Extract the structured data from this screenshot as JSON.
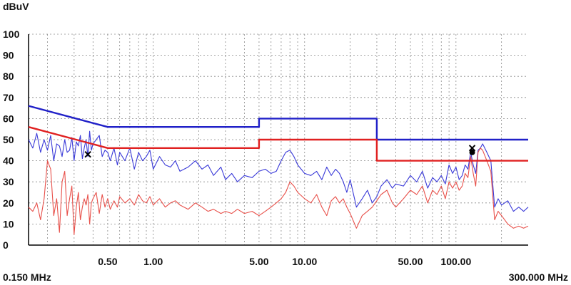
{
  "chart_data": {
    "type": "line",
    "title": "",
    "ylabel": "dBuV",
    "xlabel": "",
    "x_scale": "log",
    "xlim": [
      0.15,
      300
    ],
    "ylim": [
      0,
      100
    ],
    "x_start_label": "0.150 MHz",
    "x_end_label": "300.000 MHz",
    "y_ticks": [
      0,
      10,
      20,
      30,
      40,
      50,
      60,
      70,
      80,
      90,
      100
    ],
    "y_tick_labels": [
      "0",
      "10",
      "20",
      "30",
      "40",
      "50",
      "60",
      "70",
      "80",
      "90",
      "100"
    ],
    "x_ticks": [
      0.5,
      1,
      5,
      10,
      50,
      100
    ],
    "x_tick_labels": [
      "0.50",
      "1.00",
      "5.00",
      "10.00",
      "50.00",
      "100.00"
    ],
    "grid": true,
    "colors": {
      "blue": "#2020c8",
      "red": "#e02020",
      "blue_trace": "#3a3ad8",
      "red_trace": "#e8504a",
      "grid": "#888888",
      "marker": "#000000"
    },
    "series": [
      {
        "kind": "limit",
        "color": "blue",
        "x": [
          0.15,
          0.5,
          5,
          5,
          30,
          30,
          300
        ],
        "y": [
          66,
          56,
          56,
          60,
          60,
          50,
          50
        ]
      },
      {
        "kind": "limit",
        "color": "red",
        "x": [
          0.15,
          0.5,
          5,
          5,
          30,
          30,
          300
        ],
        "y": [
          56,
          46,
          46,
          50,
          50,
          40,
          40
        ]
      },
      {
        "kind": "trace",
        "color": "blue_trace",
        "x": [
          0.15,
          0.16,
          0.17,
          0.18,
          0.19,
          0.2,
          0.21,
          0.22,
          0.23,
          0.24,
          0.25,
          0.26,
          0.27,
          0.28,
          0.29,
          0.3,
          0.31,
          0.32,
          0.33,
          0.34,
          0.35,
          0.36,
          0.37,
          0.38,
          0.39,
          0.4,
          0.42,
          0.44,
          0.46,
          0.48,
          0.5,
          0.52,
          0.55,
          0.58,
          0.6,
          0.65,
          0.7,
          0.75,
          0.8,
          0.85,
          0.9,
          0.95,
          1.0,
          1.1,
          1.2,
          1.3,
          1.4,
          1.5,
          1.7,
          1.9,
          2.1,
          2.3,
          2.5,
          2.8,
          3.0,
          3.3,
          3.6,
          4.0,
          4.5,
          5.0,
          5.5,
          6.0,
          6.5,
          7.0,
          7.5,
          8.0,
          8.5,
          9.0,
          10,
          11,
          12,
          13,
          14,
          15,
          16,
          17,
          18,
          19,
          20,
          22,
          24,
          26,
          28,
          30,
          32,
          35,
          38,
          40,
          45,
          50,
          55,
          60,
          65,
          70,
          75,
          80,
          85,
          90,
          95,
          100,
          105,
          110,
          115,
          120,
          125,
          130,
          135,
          140,
          145,
          150,
          160,
          170,
          180,
          190,
          200,
          220,
          240,
          260,
          280,
          300
        ],
        "y": [
          50,
          46,
          53,
          44,
          50,
          45,
          52,
          40,
          48,
          47,
          42,
          50,
          44,
          45,
          51,
          40,
          49,
          47,
          52,
          41,
          46,
          50,
          42,
          54,
          45,
          48,
          50,
          52,
          42,
          45,
          44,
          40,
          46,
          38,
          44,
          40,
          46,
          36,
          44,
          40,
          42,
          45,
          36,
          42,
          38,
          37,
          40,
          35,
          37,
          40,
          36,
          38,
          33,
          37,
          31,
          34,
          30,
          33,
          32,
          35,
          36,
          34,
          35,
          40,
          44,
          45,
          42,
          38,
          34,
          33,
          35,
          31,
          37,
          33,
          36,
          34,
          30,
          25,
          31,
          18,
          22,
          26,
          20,
          23,
          28,
          31,
          27,
          29,
          28,
          33,
          30,
          35,
          27,
          32,
          30,
          33,
          29,
          38,
          34,
          37,
          31,
          33,
          38,
          36,
          44,
          38,
          34,
          45,
          46,
          48,
          44,
          40,
          18,
          22,
          19,
          21,
          16,
          18,
          16,
          18
        ]
      },
      {
        "kind": "trace",
        "color": "red_trace",
        "x": [
          0.15,
          0.16,
          0.17,
          0.18,
          0.19,
          0.2,
          0.21,
          0.22,
          0.23,
          0.24,
          0.25,
          0.26,
          0.27,
          0.28,
          0.29,
          0.3,
          0.31,
          0.32,
          0.33,
          0.34,
          0.35,
          0.36,
          0.37,
          0.38,
          0.39,
          0.4,
          0.42,
          0.44,
          0.46,
          0.48,
          0.5,
          0.52,
          0.55,
          0.58,
          0.6,
          0.65,
          0.7,
          0.75,
          0.8,
          0.85,
          0.9,
          0.95,
          1.0,
          1.1,
          1.2,
          1.3,
          1.4,
          1.5,
          1.7,
          1.9,
          2.1,
          2.3,
          2.5,
          2.8,
          3.0,
          3.3,
          3.6,
          4.0,
          4.5,
          5.0,
          5.5,
          6.0,
          6.5,
          7.0,
          7.5,
          8.0,
          8.5,
          9.0,
          10,
          11,
          12,
          13,
          14,
          15,
          16,
          17,
          18,
          19,
          20,
          22,
          24,
          26,
          28,
          30,
          32,
          35,
          38,
          40,
          45,
          50,
          55,
          60,
          65,
          70,
          75,
          80,
          85,
          90,
          95,
          100,
          105,
          110,
          115,
          120,
          125,
          130,
          135,
          140,
          145,
          150,
          160,
          170,
          180,
          190,
          200,
          220,
          240,
          260,
          280,
          300
        ],
        "y": [
          18,
          16,
          20,
          12,
          22,
          40,
          36,
          14,
          22,
          6,
          30,
          35,
          14,
          22,
          28,
          5,
          18,
          25,
          12,
          18,
          22,
          19,
          24,
          10,
          20,
          22,
          25,
          15,
          24,
          18,
          22,
          17,
          21,
          18,
          23,
          20,
          22,
          19,
          24,
          21,
          20,
          23,
          19,
          22,
          18,
          20,
          21,
          19,
          17,
          20,
          18,
          16,
          17,
          15,
          16,
          15,
          17,
          15,
          16,
          14,
          16,
          18,
          20,
          22,
          25,
          30,
          28,
          25,
          22,
          20,
          24,
          18,
          14,
          21,
          23,
          20,
          22,
          18,
          15,
          8,
          14,
          16,
          18,
          21,
          24,
          26,
          20,
          18,
          22,
          26,
          24,
          28,
          20,
          26,
          24,
          28,
          22,
          30,
          27,
          30,
          26,
          28,
          34,
          32,
          42,
          34,
          28,
          44,
          46,
          45,
          40,
          35,
          12,
          16,
          14,
          10,
          8,
          9,
          8,
          9
        ]
      }
    ],
    "markers": [
      {
        "x": 0.37,
        "y": 43,
        "symbol": "x"
      },
      {
        "x": 128,
        "y": 46,
        "symbol": "x"
      },
      {
        "x": 128,
        "y": 44,
        "symbol": "dot"
      }
    ]
  }
}
